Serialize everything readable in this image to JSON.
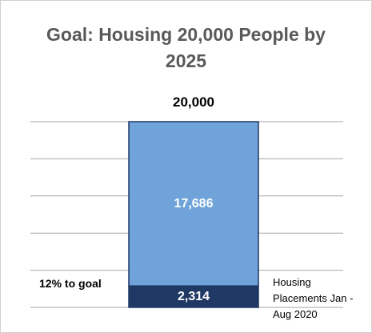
{
  "chart_data": {
    "type": "stacked_bar",
    "title": "Goal: Housing 20,000 People by 2025",
    "annotation": "12% to goal",
    "total_value": 20000,
    "total_label": "20,000",
    "series": [
      {
        "name": "Housing Placements Jan - Aug 2020",
        "color": "#203864",
        "values": [
          2314
        ],
        "value_labels": [
          "2,314"
        ]
      },
      {
        "color": "#6fa3da",
        "values": [
          17686
        ],
        "value_labels": [
          "17,686"
        ]
      }
    ],
    "ylim": [
      0,
      20000
    ],
    "yticks": [
      0,
      4000,
      8000,
      12000,
      16000,
      20000
    ],
    "grid": true
  }
}
